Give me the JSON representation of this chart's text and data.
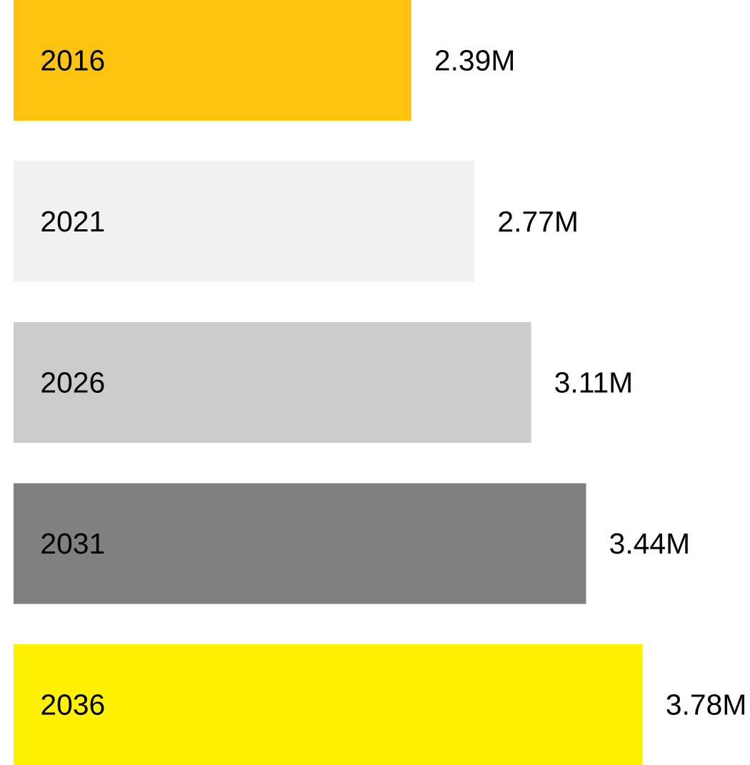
{
  "chart_data": {
    "type": "bar",
    "orientation": "horizontal",
    "categories": [
      "2016",
      "2021",
      "2026",
      "2031",
      "2036"
    ],
    "values": [
      2.39,
      2.77,
      3.11,
      3.44,
      3.78
    ],
    "colors": [
      "#fcc40f",
      "#f1f1f1",
      "#cccccc",
      "#808080",
      "#fff200"
    ],
    "value_labels": [
      "2.39M",
      "2.77M",
      "3.11M",
      "3.44M",
      "3.78M"
    ]
  }
}
